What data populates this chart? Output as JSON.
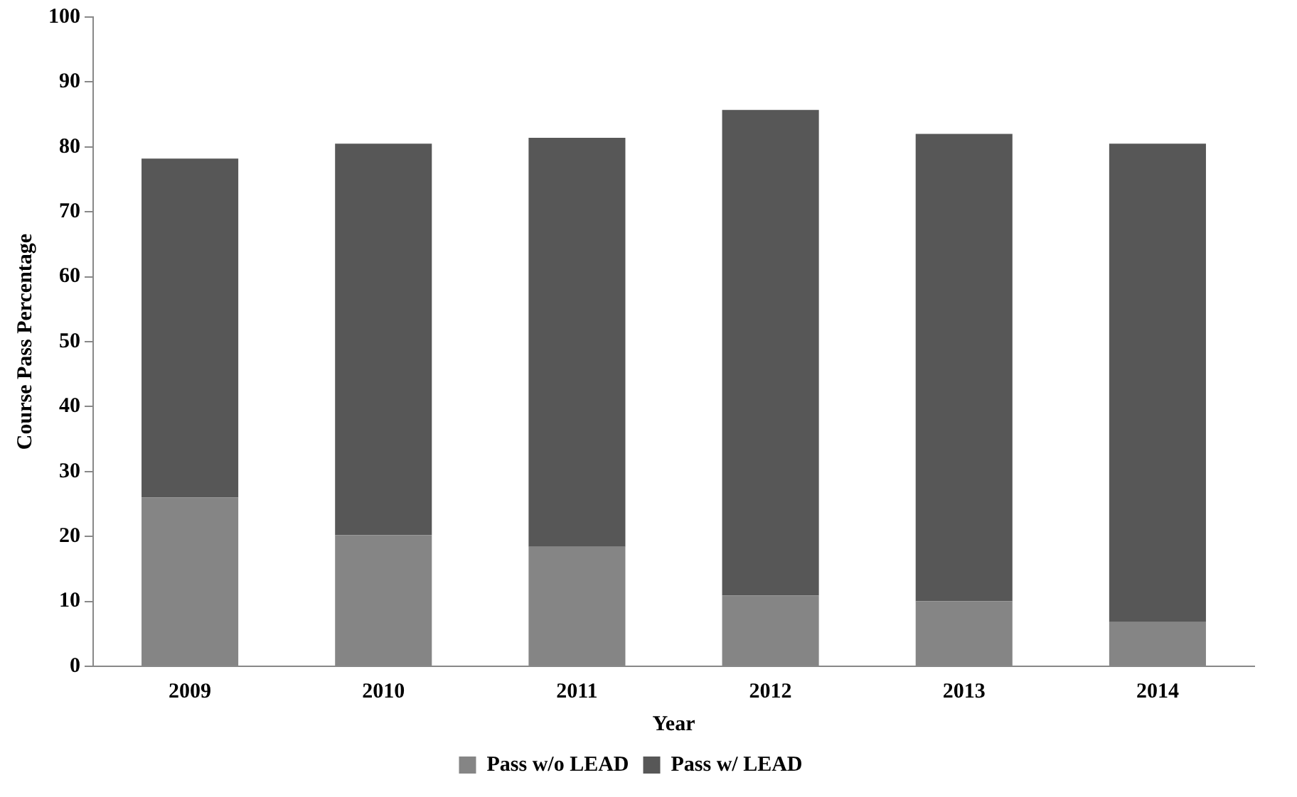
{
  "chart_data": {
    "type": "bar",
    "stacked": true,
    "xlabel": "Year",
    "ylabel": "Course Pass Percentage",
    "categories": [
      "2009",
      "2010",
      "2011",
      "2012",
      "2013",
      "2014"
    ],
    "series": [
      {
        "name": "Pass w/o LEAD",
        "color": "#858585",
        "values": [
          26,
          20.2,
          18.4,
          10.9,
          10,
          6.8
        ]
      },
      {
        "name": "Pass w/ LEAD",
        "color": "#575757",
        "values": [
          52.2,
          60.3,
          63,
          74.8,
          72,
          73.7
        ]
      }
    ],
    "ylim": [
      0,
      100
    ],
    "yticks": [
      0,
      10,
      20,
      30,
      40,
      50,
      60,
      70,
      80,
      90,
      100
    ],
    "grid": false,
    "legend": "bottom"
  }
}
